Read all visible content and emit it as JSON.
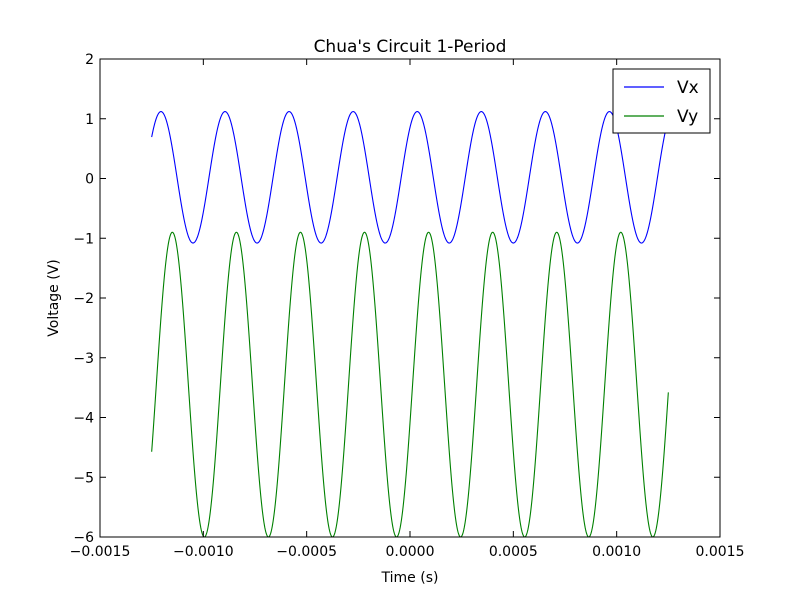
{
  "chart_data": {
    "type": "line",
    "title": "Chua's Circuit 1-Period",
    "xlabel": "Time (s)",
    "ylabel": "Voltage (V)",
    "xlim": [
      -0.0015,
      0.0015
    ],
    "ylim": [
      -6,
      2
    ],
    "x_ticks": [
      -0.0015,
      -0.001,
      -0.0005,
      0.0,
      0.0005,
      0.001,
      0.0015
    ],
    "x_tick_labels": [
      "−0.0015",
      "−0.0010",
      "−0.0005",
      "0.0000",
      "0.0005",
      "0.0010",
      "0.0015"
    ],
    "y_ticks": [
      2,
      1,
      0,
      -1,
      -2,
      -3,
      -4,
      -5,
      -6
    ],
    "y_tick_labels": [
      "2",
      "1",
      "0",
      "−1",
      "−2",
      "−3",
      "−4",
      "−5",
      "−6"
    ],
    "grid": false,
    "legend": "top-right",
    "series": [
      {
        "name": "Vx",
        "color": "#0000ff",
        "x_range": [
          -0.00125,
          0.00125
        ],
        "waveform": {
          "type": "sinusoid",
          "center": 0.02,
          "amplitude": 1.1,
          "period": 0.00031,
          "peak_at": -0.000895
        }
      },
      {
        "name": "Vy",
        "color": "#008000",
        "x_range": [
          -0.00125,
          0.00125
        ],
        "waveform": {
          "type": "sinusoid",
          "center": -3.45,
          "amplitude": 2.55,
          "period": 0.00031,
          "peak_at": -0.00084
        }
      }
    ]
  }
}
